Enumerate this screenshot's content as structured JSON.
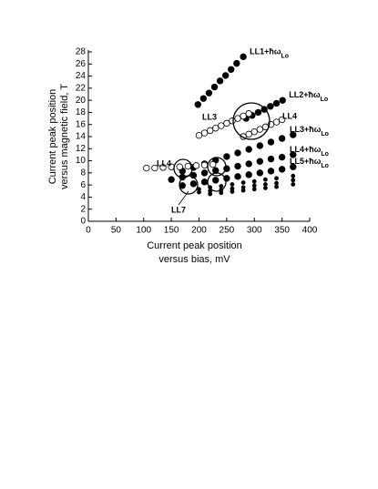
{
  "chart_data": {
    "type": "scatter",
    "y_label": [
      "Current peak position",
      "versus magnetic field, T"
    ],
    "x_label": [
      "Current peak position",
      "versus bias, mV"
    ],
    "xlim": [
      0,
      400
    ],
    "xticks": [
      0,
      50,
      100,
      150,
      200,
      250,
      300,
      350,
      400
    ],
    "ylim": [
      0,
      28
    ],
    "yticks": [
      0,
      2,
      4,
      6,
      8,
      10,
      12,
      14,
      16,
      18,
      20,
      22,
      24,
      26,
      28
    ],
    "name_subscript": "Lo",
    "series": [
      {
        "name": "LL1+ħω",
        "color": "#000",
        "marker": "filled",
        "x": [
          198,
          208,
          218,
          228,
          238,
          248,
          258,
          268,
          280
        ],
        "values": [
          19.3,
          20.3,
          21.2,
          22.2,
          23.2,
          24.1,
          25.1,
          26.1,
          27.2
        ]
      },
      {
        "name": "LL2+ħω",
        "color": "#000",
        "marker": "filled",
        "x": [
          285,
          296,
          307,
          318,
          329,
          340,
          351
        ],
        "values": [
          17.0,
          17.5,
          18.0,
          18.5,
          19.0,
          19.5,
          20.0
        ]
      },
      {
        "color": "#000",
        "marker": "open",
        "x": [
          200,
          210,
          220,
          230,
          240,
          250,
          260,
          270,
          280,
          290
        ],
        "values": [
          14.2,
          14.6,
          15.0,
          15.4,
          15.8,
          16.2,
          16.6,
          17.0,
          17.4,
          17.8
        ]
      },
      {
        "color": "#000",
        "marker": "open",
        "x": [
          280,
          290,
          300,
          310,
          320,
          330,
          340,
          350
        ],
        "values": [
          14.0,
          14.4,
          14.8,
          15.2,
          15.6,
          16.0,
          16.4,
          16.8
        ]
      },
      {
        "name": "LL3+ħω",
        "color": "#000",
        "marker": "filled",
        "x": [
          170,
          190,
          210,
          230,
          250,
          270,
          290,
          310,
          330,
          350,
          370
        ],
        "values": [
          8.3,
          8.9,
          9.5,
          10.1,
          10.7,
          11.3,
          11.9,
          12.5,
          13.1,
          13.7,
          14.3
        ]
      },
      {
        "color": "#000",
        "marker": "open",
        "x": [
          105,
          120,
          135,
          150,
          165,
          180,
          195,
          210,
          225
        ],
        "values": [
          8.8,
          8.8,
          8.9,
          9.0,
          9.0,
          9.1,
          9.2,
          9.3,
          9.4
        ]
      },
      {
        "name": "LL4+ħω",
        "color": "#000",
        "marker": "filled",
        "x": [
          150,
          170,
          190,
          210,
          230,
          250,
          270,
          290,
          310,
          330,
          350,
          370
        ],
        "values": [
          6.9,
          7.3,
          7.6,
          8.0,
          8.4,
          8.7,
          9.1,
          9.5,
          9.9,
          10.3,
          10.6,
          11.0
        ]
      },
      {
        "name": "LL5+ħω",
        "color": "#000",
        "marker": "filled",
        "x": [
          170,
          190,
          210,
          230,
          250,
          270,
          290,
          310,
          330,
          350,
          370
        ],
        "values": [
          5.9,
          6.2,
          6.5,
          6.8,
          7.1,
          7.4,
          7.7,
          8.0,
          8.3,
          8.6,
          9.0
        ]
      },
      {
        "color": "#000",
        "marker": "small",
        "x": [
          200,
          220,
          240,
          260,
          280,
          300,
          320,
          340,
          370
        ],
        "values": [
          5.3,
          5.6,
          5.8,
          6.1,
          6.4,
          6.6,
          6.9,
          7.1,
          7.5
        ]
      },
      {
        "color": "#000",
        "marker": "small",
        "x": [
          200,
          220,
          240,
          260,
          280,
          300,
          320,
          340,
          370
        ],
        "values": [
          4.8,
          5.0,
          5.2,
          5.4,
          5.6,
          5.9,
          6.1,
          6.3,
          6.8
        ]
      },
      {
        "color": "#000",
        "marker": "small",
        "x": [
          220,
          240,
          260,
          280,
          300,
          320,
          340,
          370
        ],
        "values": [
          4.5,
          4.7,
          4.9,
          5.1,
          5.3,
          5.5,
          5.7,
          6.1
        ]
      }
    ],
    "annotations": [
      "LL3",
      "LL4",
      "LL4",
      "LL7"
    ]
  }
}
